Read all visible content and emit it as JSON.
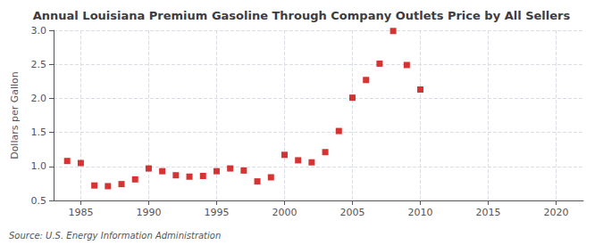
{
  "chart_data": {
    "type": "scatter",
    "title": "Annual Louisiana Premium Gasoline Through Company Outlets Price by All Sellers",
    "ylabel": "Dollars per Gallon",
    "annotation": "Source: U.S. Energy Information Administration",
    "x": [
      1984,
      1985,
      1986,
      1987,
      1988,
      1989,
      1990,
      1991,
      1992,
      1993,
      1994,
      1995,
      1996,
      1997,
      1998,
      1999,
      2000,
      2001,
      2002,
      2003,
      2004,
      2005,
      2006,
      2007,
      2008,
      2009,
      2010
    ],
    "values": [
      1.08,
      1.05,
      0.72,
      0.71,
      0.74,
      0.81,
      0.97,
      0.93,
      0.87,
      0.85,
      0.86,
      0.93,
      0.97,
      0.94,
      0.78,
      0.84,
      1.17,
      1.09,
      1.06,
      1.21,
      1.52,
      2.01,
      2.27,
      2.51,
      2.99,
      2.49,
      2.13
    ],
    "color": "#cc0000",
    "marker": "square",
    "xlim": [
      1983,
      2022
    ],
    "xticks": [
      1985,
      1990,
      1995,
      2000,
      2005,
      2010,
      2015,
      2020
    ],
    "ylim": [
      0.5,
      3.0
    ],
    "yticks": [
      0.5,
      {
        "value": 1.0,
        "label": "1.0"
      },
      1.5,
      {
        "value": 2.0,
        "label": "2.0"
      },
      2.5,
      {
        "value": 3.0,
        "label": "3.0"
      }
    ],
    "grid": true
  }
}
